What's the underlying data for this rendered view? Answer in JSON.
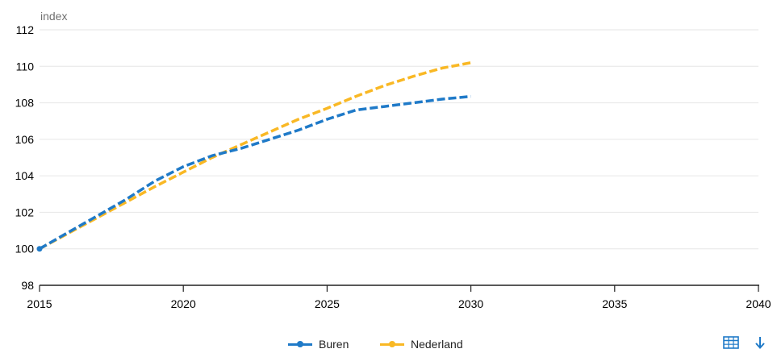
{
  "chart_data": {
    "type": "line",
    "title": "",
    "xlabel": "",
    "ylabel": "index",
    "xlim": [
      2015,
      2040
    ],
    "ylim": [
      98,
      112
    ],
    "x_ticks": [
      2015,
      2020,
      2025,
      2030,
      2035,
      2040
    ],
    "y_ticks": [
      98,
      100,
      102,
      104,
      106,
      108,
      110,
      112
    ],
    "grid": "horizontal",
    "legend_position": "bottom-center",
    "series": [
      {
        "name": "Buren",
        "color": "#1f7ac8",
        "style": "dashed",
        "x": [
          2015,
          2016,
          2017,
          2018,
          2019,
          2020,
          2021,
          2022,
          2023,
          2024,
          2025,
          2026,
          2027,
          2028,
          2029,
          2030
        ],
        "values": [
          100.0,
          100.9,
          101.8,
          102.7,
          103.7,
          104.5,
          105.1,
          105.5,
          106.0,
          106.5,
          107.1,
          107.6,
          107.8,
          108.0,
          108.2,
          108.35
        ]
      },
      {
        "name": "Nederland",
        "color": "#f9b824",
        "style": "dashed",
        "x": [
          2015,
          2016,
          2017,
          2018,
          2019,
          2020,
          2021,
          2022,
          2023,
          2024,
          2025,
          2026,
          2027,
          2028,
          2029,
          2030
        ],
        "values": [
          100.0,
          100.85,
          101.7,
          102.55,
          103.4,
          104.2,
          105.0,
          105.7,
          106.4,
          107.1,
          107.7,
          108.35,
          108.95,
          109.45,
          109.9,
          110.2
        ]
      }
    ]
  },
  "tools": {
    "table_icon": "table-icon",
    "download_icon": "download-arrow-icon"
  }
}
